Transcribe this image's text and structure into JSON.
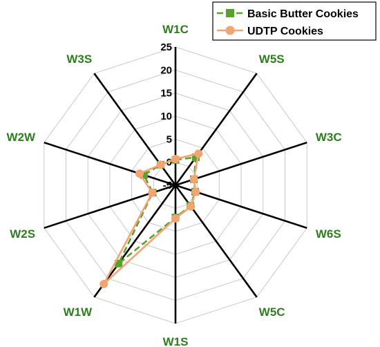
{
  "chart_data": {
    "type": "radar",
    "categories": [
      "W1C",
      "W5S",
      "W3C",
      "W6S",
      "W5C",
      "W1S",
      "W1W",
      "W2S",
      "W2W",
      "W3S"
    ],
    "rlim": [
      -5,
      25
    ],
    "ticks": [
      -5,
      0,
      5,
      10,
      15,
      20,
      25
    ],
    "tick_labels": [
      "-5",
      "0",
      "5",
      "10",
      "15",
      "20",
      "25"
    ],
    "series": [
      {
        "name": "Basic Butter Cookies",
        "color": "#5aa02c",
        "marker": "square",
        "line": "dashed",
        "values": [
          0.5,
          2.5,
          -0.8,
          -0.5,
          0.5,
          2.0,
          16.0,
          0.2,
          2.2,
          0.5
        ]
      },
      {
        "name": "UDTP Cookies",
        "color": "#f0a573",
        "marker": "circle",
        "line": "solid",
        "values": [
          0.7,
          3.5,
          -0.8,
          -0.4,
          0.7,
          2.2,
          21.5,
          0.3,
          3.2,
          0.5
        ]
      }
    ],
    "legend_position": "top-right",
    "label_color": "#2e7d1e",
    "grid": true
  }
}
